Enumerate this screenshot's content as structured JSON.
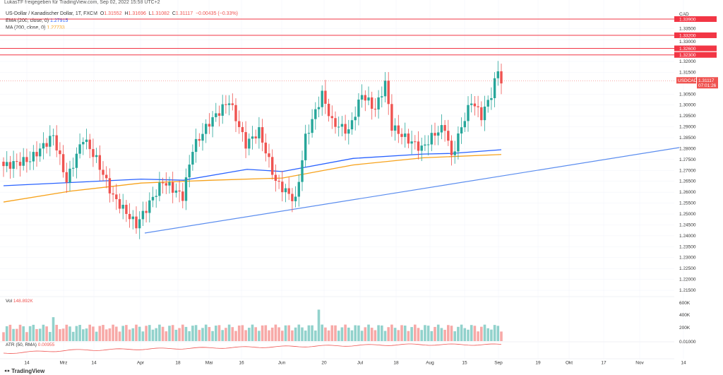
{
  "share_line": "LukasTF freigegeben für TradingView.com, Sep 02, 2022 15:58 UTC+2",
  "symbol": {
    "title": "US-Dollar / Kanadischer Dollar, 1T, FXCM",
    "o_label": "O",
    "o": "1.31552",
    "h_label": "H",
    "h": "1.31696",
    "l_label": "L",
    "l": "1.31082",
    "c_label": "C",
    "c": "1.31117",
    "change": "−0.00435 (−0.33%)"
  },
  "ema": {
    "label": "EMA (200, close, 0)",
    "value": "1.27915"
  },
  "ma": {
    "label": "MA (200, close, 0)",
    "value": "1.27733"
  },
  "volume": {
    "label": "Vol",
    "value": "148.892K",
    "ticks": [
      "600K",
      "400K",
      "200K"
    ]
  },
  "atr": {
    "label": "ATR (50, RMA)",
    "value": "0.00955",
    "axis": "0.01000"
  },
  "price_axis": {
    "currency": "CAD",
    "ticks": [
      "1.33500",
      "1.33000",
      "1.32000",
      "1.31500",
      "1.30500",
      "1.30000",
      "1.29500",
      "1.29000",
      "1.28500",
      "1.28000",
      "1.27500",
      "1.27000",
      "1.26500",
      "1.26000",
      "1.25500",
      "1.25000",
      "1.24500",
      "1.24000",
      "1.23500",
      "1.23000",
      "1.22500",
      "1.22000",
      "1.21500"
    ],
    "levels": [
      "1.33900",
      "1.33200",
      "1.32600",
      "1.32300"
    ],
    "last": {
      "symbol": "USDCAD",
      "price": "1.31117",
      "countdown": "07:01:26"
    }
  },
  "date_axis": [
    "14",
    "Mrz",
    "14",
    "Apr",
    "18",
    "Mai",
    "16",
    "Jun",
    "20",
    "Jul",
    "18",
    "Aug",
    "15",
    "Sep",
    "19",
    "Okt",
    "17",
    "Nov",
    "14"
  ],
  "colors": {
    "up": "#26a69a",
    "down": "#ef5350",
    "ema": "#2962ff",
    "ma": "#f7a21b",
    "level": "#f23645"
  },
  "price_keyframes": [
    [
      0,
      1.272
    ],
    [
      8,
      1.275
    ],
    [
      15,
      1.286
    ],
    [
      19,
      1.265
    ],
    [
      24,
      1.285
    ],
    [
      28,
      1.275
    ],
    [
      33,
      1.258
    ],
    [
      40,
      1.245
    ],
    [
      44,
      1.255
    ],
    [
      48,
      1.265
    ],
    [
      54,
      1.258
    ],
    [
      57,
      1.28
    ],
    [
      62,
      1.292
    ],
    [
      68,
      1.302
    ],
    [
      73,
      1.282
    ],
    [
      77,
      1.288
    ],
    [
      82,
      1.265
    ],
    [
      88,
      1.256
    ],
    [
      91,
      1.285
    ],
    [
      96,
      1.305
    ],
    [
      99,
      1.292
    ],
    [
      104,
      1.288
    ],
    [
      108,
      1.305
    ],
    [
      112,
      1.298
    ],
    [
      115,
      1.31
    ],
    [
      117,
      1.29
    ],
    [
      121,
      1.285
    ],
    [
      126,
      1.28
    ],
    [
      130,
      1.287
    ],
    [
      133,
      1.29
    ],
    [
      135,
      1.276
    ],
    [
      138,
      1.29
    ],
    [
      141,
      1.302
    ],
    [
      144,
      1.295
    ],
    [
      147,
      1.305
    ],
    [
      149,
      1.316
    ],
    [
      150,
      1.311
    ]
  ],
  "logo": "TradingView"
}
